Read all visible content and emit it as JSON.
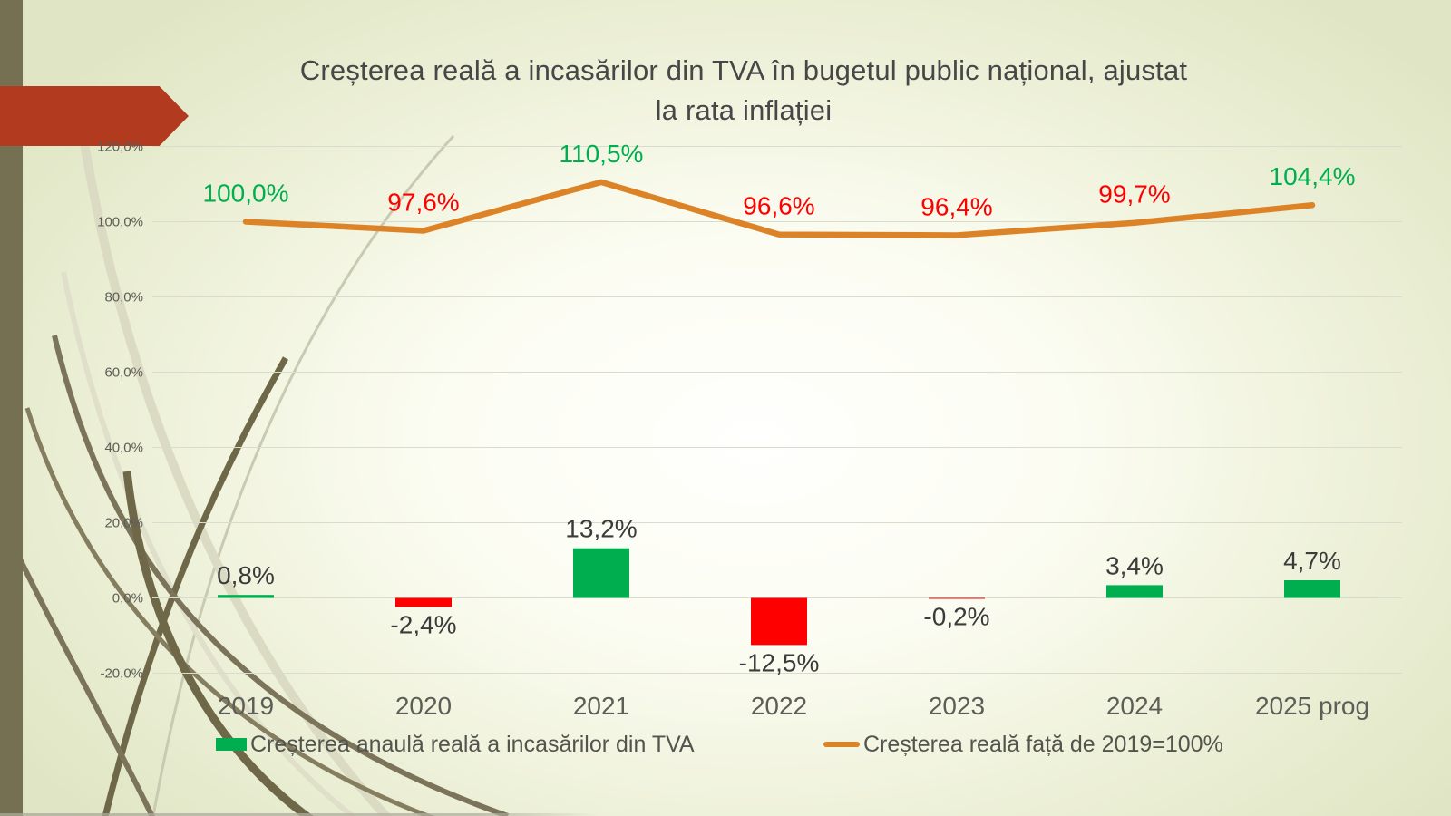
{
  "slide": {
    "title_lines": [
      "Creșterea reală a incasărilor din TVA în bugetul public național, ajustat",
      "la rata inflației"
    ]
  },
  "colors": {
    "green": "#00AE4F",
    "red": "#FF0000",
    "orange": "#DD8327",
    "bar_label": "#3B3B3B",
    "axis_text": "#5E5E58",
    "grid": "#D9DCCD",
    "arrow": "#B23A1E",
    "edge_strip": "#767053"
  },
  "chart_data": {
    "type": "combo",
    "title": "Creșterea reală a incasărilor din TVA în bugetul public național, ajustat la rata inflației",
    "categories": [
      "2019",
      "2020",
      "2021",
      "2022",
      "2023",
      "2024",
      "2025 prog"
    ],
    "series": [
      {
        "name": "Creșterea anaulă reală a incasărilor din TVA",
        "type": "bar",
        "values": [
          0.8,
          -2.4,
          13.2,
          -12.5,
          -0.2,
          3.4,
          4.7
        ],
        "labels": [
          "0,8%",
          "-2,4%",
          "13,2%",
          "-12,5%",
          "-0,2%",
          "3,4%",
          "4,7%"
        ],
        "color_positive": "#00AE4F",
        "color_negative": "#FF0000"
      },
      {
        "name": "Creșterea reală față de 2019=100%",
        "type": "line",
        "values": [
          100.0,
          97.6,
          110.5,
          96.6,
          96.4,
          99.7,
          104.4
        ],
        "labels": [
          "100,0%",
          "97,6%",
          "110,5%",
          "96,6%",
          "96,4%",
          "99,7%",
          "104,4%"
        ],
        "color": "#DD8327",
        "label_colors": [
          "#00AE4F",
          "#FF0000",
          "#00AE4F",
          "#FF0000",
          "#FF0000",
          "#FF0000",
          "#00AE4F"
        ]
      }
    ],
    "y_axis": {
      "tick_labels": [
        "120,0%",
        "100,0%",
        "80,0%",
        "60,0%",
        "40,0%",
        "20,0%",
        "0,0%",
        "-20,0%"
      ],
      "tick_values": [
        120,
        100,
        80,
        60,
        40,
        20,
        0,
        -20
      ],
      "min": -20,
      "max": 120,
      "grid": true
    },
    "legend_position": "bottom"
  }
}
